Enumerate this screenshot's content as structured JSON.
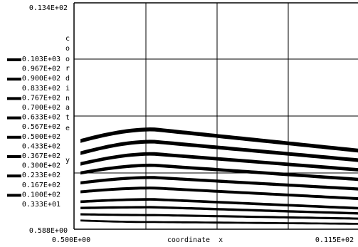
{
  "chart_data": {
    "type": "heatmap",
    "title": "",
    "xlabel": "coordinate  x",
    "ylabel_letters": [
      "c",
      "o",
      "o",
      "r",
      "d",
      "i",
      "n",
      "a",
      "t",
      "e",
      "y"
    ],
    "x_ticks": [
      "0.500E+00",
      "0.115E+02"
    ],
    "y_ticks": [
      "0.588E+00",
      "0.134E+02"
    ],
    "xlim": [
      0.5,
      11.5
    ],
    "ylim": [
      0.588,
      13.4
    ],
    "grid": true,
    "legend": {
      "placement": "left",
      "entries": [
        {
          "label": "0.103E+03",
          "marker": true
        },
        {
          "label": "0.967E+02",
          "marker": false
        },
        {
          "label": "0.900E+02",
          "marker": true
        },
        {
          "label": "0.833E+02",
          "marker": false
        },
        {
          "label": "0.767E+02",
          "marker": true
        },
        {
          "label": "0.700E+02",
          "marker": false
        },
        {
          "label": "0.633E+02",
          "marker": true
        },
        {
          "label": "0.567E+02",
          "marker": false
        },
        {
          "label": "0.500E+02",
          "marker": true
        },
        {
          "label": "0.433E+02",
          "marker": false
        },
        {
          "label": "0.367E+02",
          "marker": true
        },
        {
          "label": "0.300E+02",
          "marker": false
        },
        {
          "label": "0.233E+02",
          "marker": true
        },
        {
          "label": "0.167E+02",
          "marker": false
        },
        {
          "label": "0.100E+02",
          "marker": true
        },
        {
          "label": "0.333E+01",
          "marker": false
        }
      ]
    },
    "contour_bands": [
      {
        "value": 103.0,
        "y_left": 5.6,
        "y_peak": 6.35,
        "y_right": 5.15
      },
      {
        "value": 90.0,
        "y_left": 4.9,
        "y_peak": 5.65,
        "y_right": 4.6
      },
      {
        "value": 76.7,
        "y_left": 4.3,
        "y_peak": 4.95,
        "y_right": 4.05
      },
      {
        "value": 63.3,
        "y_left": 3.8,
        "y_peak": 4.3,
        "y_right": 3.5
      },
      {
        "value": 50.0,
        "y_left": 3.25,
        "y_peak": 3.6,
        "y_right": 2.95
      },
      {
        "value": 36.7,
        "y_left": 2.75,
        "y_peak": 3.0,
        "y_right": 2.4
      },
      {
        "value": 23.3,
        "y_left": 2.2,
        "y_peak": 2.35,
        "y_right": 1.85
      },
      {
        "value": 16.7,
        "y_left": 1.85,
        "y_peak": 1.9,
        "y_right": 1.55
      },
      {
        "value": 10.0,
        "y_left": 1.5,
        "y_peak": 1.45,
        "y_right": 1.25
      },
      {
        "value": 3.33,
        "y_left": 1.15,
        "y_peak": 1.05,
        "y_right": 0.95
      }
    ]
  }
}
